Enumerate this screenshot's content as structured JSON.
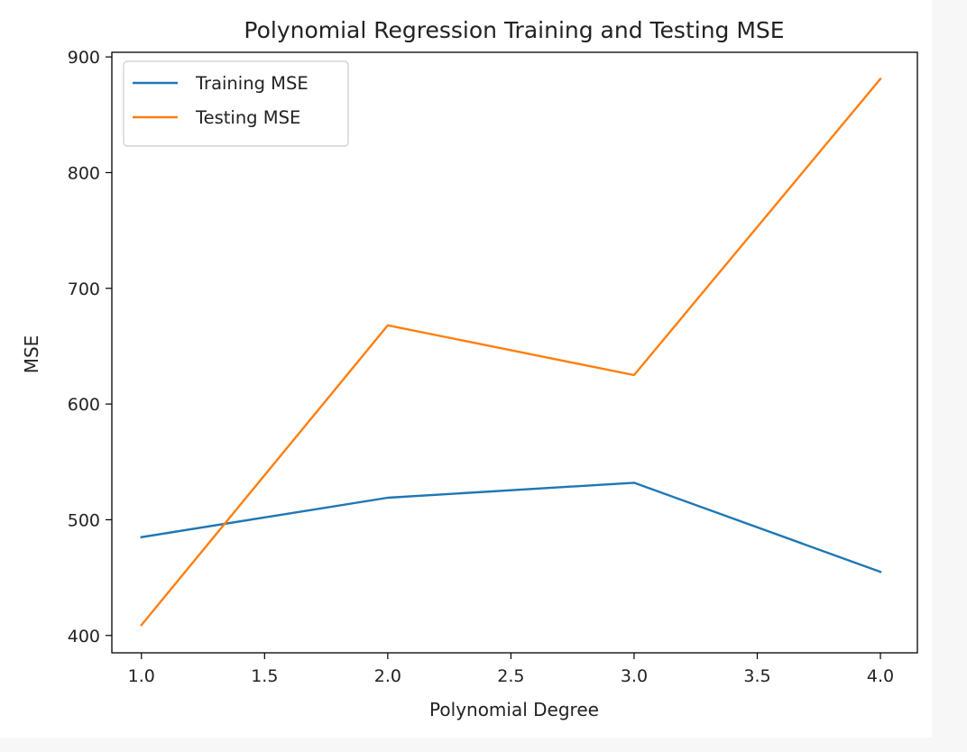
{
  "chart_data": {
    "type": "line",
    "title": "Polynomial Regression Training and Testing MSE",
    "xlabel": "Polynomial Degree",
    "ylabel": "MSE",
    "xlim": [
      0.88,
      4.15
    ],
    "ylim": [
      385,
      904
    ],
    "xticks": [
      1.0,
      1.5,
      2.0,
      2.5,
      3.0,
      3.5,
      4.0
    ],
    "xtick_labels": [
      "1.0",
      "1.5",
      "2.0",
      "2.5",
      "3.0",
      "3.5",
      "4.0"
    ],
    "yticks": [
      400,
      500,
      600,
      700,
      800,
      900
    ],
    "ytick_labels": [
      "400",
      "500",
      "600",
      "700",
      "800",
      "900"
    ],
    "grid": false,
    "legend_position": "top-left",
    "x": [
      1,
      2,
      3,
      4
    ],
    "series": [
      {
        "name": "Training MSE",
        "color": "#1f77b4",
        "values": [
          485,
          519,
          532,
          455
        ]
      },
      {
        "name": "Testing MSE",
        "color": "#ff7f0e",
        "values": [
          409,
          668,
          625,
          881
        ]
      }
    ]
  }
}
